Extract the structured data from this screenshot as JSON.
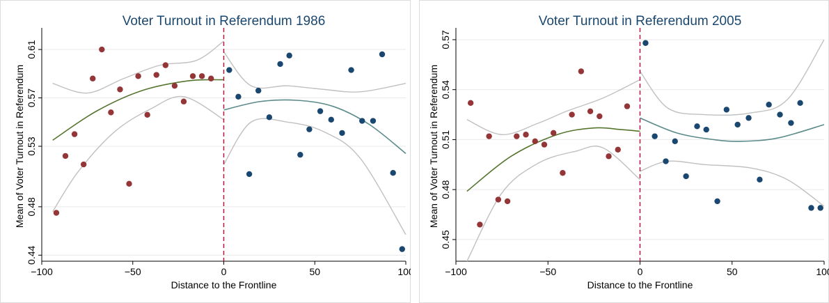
{
  "chart_data": [
    {
      "type": "scatter",
      "title": "Voter Turnout in Referendum 1986",
      "xlabel": "Distance to the Frontline",
      "ylabel": "Mean of Voter Turnout in Referendum",
      "xlim": [
        -100,
        100
      ],
      "ylim": [
        0.435,
        0.625
      ],
      "xticks": [
        -100,
        -50,
        0,
        50,
        100
      ],
      "xtick_labels": [
        "−100",
        "−50",
        "0",
        "50",
        "100"
      ],
      "yticks": [
        0.44,
        0.48,
        0.53,
        0.57,
        0.61
      ],
      "ytick_labels": [
        "0.44",
        "0.48",
        "0.53",
        "0.57",
        "0.61"
      ],
      "grid": true,
      "cutoff": 0,
      "colors": {
        "left": "#943537",
        "right": "#1a476f",
        "fit_left": "#55752f",
        "fit_right": "#5a8a8a",
        "ci": "#c0c0c0",
        "cutoff": "#c10534"
      },
      "series": [
        {
          "side": "left",
          "points": [
            [
              -92,
              0.475
            ],
            [
              -87,
              0.522
            ],
            [
              -82,
              0.54
            ],
            [
              -77,
              0.515
            ],
            [
              -72,
              0.586
            ],
            [
              -67,
              0.61
            ],
            [
              -62,
              0.558
            ],
            [
              -57,
              0.577
            ],
            [
              -52,
              0.499
            ],
            [
              -47,
              0.588
            ],
            [
              -42,
              0.556
            ],
            [
              -37,
              0.589
            ],
            [
              -32,
              0.597
            ],
            [
              -27,
              0.58
            ],
            [
              -22,
              0.567
            ],
            [
              -17,
              0.588
            ],
            [
              -12,
              0.588
            ],
            [
              -7,
              0.586
            ]
          ]
        },
        {
          "side": "right",
          "points": [
            [
              3,
              0.593
            ],
            [
              8,
              0.571
            ],
            [
              14,
              0.507
            ],
            [
              19,
              0.576
            ],
            [
              25,
              0.554
            ],
            [
              31,
              0.598
            ],
            [
              36,
              0.605
            ],
            [
              42,
              0.523
            ],
            [
              47,
              0.544
            ],
            [
              53,
              0.559
            ],
            [
              59,
              0.552
            ],
            [
              65,
              0.541
            ],
            [
              70,
              0.593
            ],
            [
              76,
              0.551
            ],
            [
              82,
              0.551
            ],
            [
              87,
              0.606
            ],
            [
              93,
              0.508
            ],
            [
              98,
              0.445
            ]
          ]
        }
      ],
      "fits": {
        "left": {
          "domain": [
            -94,
            0
          ],
          "fit": [
            [
              -94,
              0.535
            ],
            [
              -70,
              0.559
            ],
            [
              -45,
              0.576
            ],
            [
              -20,
              0.584
            ],
            [
              0,
              0.585
            ]
          ],
          "upper": [
            [
              -94,
              0.582
            ],
            [
              -75,
              0.574
            ],
            [
              -55,
              0.586
            ],
            [
              -35,
              0.597
            ],
            [
              -15,
              0.601
            ],
            [
              0,
              0.617
            ]
          ],
          "lower": [
            [
              -94,
              0.476
            ],
            [
              -80,
              0.509
            ],
            [
              -60,
              0.542
            ],
            [
              -40,
              0.561
            ],
            [
              -22,
              0.571
            ],
            [
              0,
              0.552
            ]
          ]
        },
        "right": {
          "domain": [
            0,
            100
          ],
          "fit": [
            [
              0,
              0.56
            ],
            [
              20,
              0.567
            ],
            [
              40,
              0.568
            ],
            [
              60,
              0.563
            ],
            [
              80,
              0.548
            ],
            [
              100,
              0.524
            ]
          ],
          "upper": [
            [
              0,
              0.608
            ],
            [
              15,
              0.58
            ],
            [
              35,
              0.58
            ],
            [
              55,
              0.577
            ],
            [
              75,
              0.575
            ],
            [
              100,
              0.582
            ]
          ],
          "lower": [
            [
              0,
              0.515
            ],
            [
              15,
              0.55
            ],
            [
              35,
              0.55
            ],
            [
              55,
              0.542
            ],
            [
              75,
              0.52
            ],
            [
              100,
              0.457
            ]
          ]
        }
      }
    },
    {
      "type": "scatter",
      "title": "Voter Turnout in Referendum 2005",
      "xlabel": "Distance to the Frontline",
      "ylabel": "Mean of Voter Turnout in Referendum",
      "xlim": [
        -100,
        100
      ],
      "ylim": [
        0.437,
        0.575
      ],
      "xticks": [
        -100,
        -50,
        0,
        50,
        100
      ],
      "xtick_labels": [
        "−100",
        "−50",
        "0",
        "50",
        "100"
      ],
      "yticks": [
        0.45,
        0.48,
        0.51,
        0.54,
        0.57
      ],
      "ytick_labels": [
        "0.45",
        "0.48",
        "0.51",
        "0.54",
        "0.57"
      ],
      "grid": true,
      "cutoff": 0,
      "colors": {
        "left": "#943537",
        "right": "#1a476f",
        "fit_left": "#55752f",
        "fit_right": "#5a8a8a",
        "ci": "#c0c0c0",
        "cutoff": "#c10534"
      },
      "series": [
        {
          "side": "left",
          "points": [
            [
              -92,
              0.532
            ],
            [
              -87,
              0.459
            ],
            [
              -82,
              0.512
            ],
            [
              -77,
              0.474
            ],
            [
              -72,
              0.473
            ],
            [
              -67,
              0.512
            ],
            [
              -62,
              0.513
            ],
            [
              -57,
              0.509
            ],
            [
              -52,
              0.507
            ],
            [
              -47,
              0.514
            ],
            [
              -42,
              0.49
            ],
            [
              -37,
              0.525
            ],
            [
              -32,
              0.551
            ],
            [
              -27,
              0.527
            ],
            [
              -22,
              0.524
            ],
            [
              -17,
              0.5
            ],
            [
              -12,
              0.504
            ],
            [
              -7,
              0.53
            ]
          ]
        },
        {
          "side": "right",
          "points": [
            [
              3,
              0.568
            ],
            [
              8,
              0.512
            ],
            [
              14,
              0.497
            ],
            [
              19,
              0.509
            ],
            [
              25,
              0.488
            ],
            [
              31,
              0.518
            ],
            [
              36,
              0.516
            ],
            [
              42,
              0.473
            ],
            [
              47,
              0.528
            ],
            [
              53,
              0.519
            ],
            [
              59,
              0.523
            ],
            [
              65,
              0.486
            ],
            [
              70,
              0.531
            ],
            [
              76,
              0.525
            ],
            [
              82,
              0.52
            ],
            [
              87,
              0.532
            ],
            [
              93,
              0.469
            ],
            [
              98,
              0.469
            ]
          ]
        }
      ],
      "fits": {
        "left": {
          "domain": [
            -94,
            0
          ],
          "fit": [
            [
              -94,
              0.479
            ],
            [
              -70,
              0.5
            ],
            [
              -45,
              0.513
            ],
            [
              -25,
              0.517
            ],
            [
              -10,
              0.516
            ],
            [
              0,
              0.515
            ]
          ],
          "upper": [
            [
              -94,
              0.522
            ],
            [
              -75,
              0.513
            ],
            [
              -55,
              0.52
            ],
            [
              -40,
              0.527
            ],
            [
              -20,
              0.535
            ],
            [
              0,
              0.546
            ]
          ],
          "lower": [
            [
              -94,
              0.437
            ],
            [
              -75,
              0.478
            ],
            [
              -55,
              0.496
            ],
            [
              -35,
              0.503
            ],
            [
              -20,
              0.505
            ],
            [
              0,
              0.486
            ]
          ]
        },
        "right": {
          "domain": [
            0,
            100
          ],
          "fit": [
            [
              0,
              0.523
            ],
            [
              20,
              0.514
            ],
            [
              40,
              0.51
            ],
            [
              55,
              0.509
            ],
            [
              75,
              0.511
            ],
            [
              100,
              0.519
            ]
          ],
          "upper": [
            [
              0,
              0.551
            ],
            [
              15,
              0.529
            ],
            [
              35,
              0.525
            ],
            [
              60,
              0.526
            ],
            [
              80,
              0.534
            ],
            [
              100,
              0.57
            ]
          ],
          "lower": [
            [
              0,
              0.491
            ],
            [
              15,
              0.497
            ],
            [
              35,
              0.495
            ],
            [
              60,
              0.493
            ],
            [
              80,
              0.486
            ],
            [
              100,
              0.47
            ]
          ]
        }
      }
    }
  ]
}
